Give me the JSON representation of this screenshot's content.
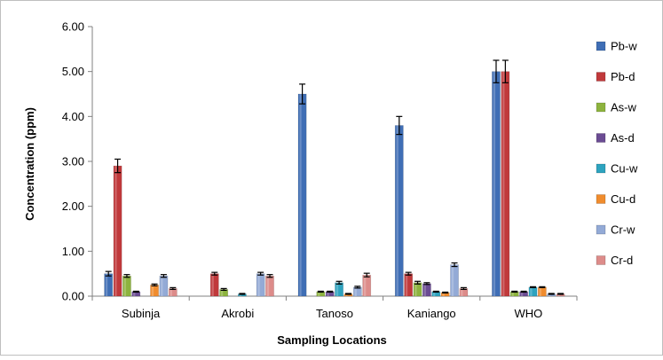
{
  "chart_data": {
    "type": "bar",
    "title": "",
    "xlabel": "Sampling Locations",
    "ylabel": "Concentration (ppm)",
    "ylim": [
      0,
      6
    ],
    "yticks": [
      "0.00",
      "1.00",
      "2.00",
      "3.00",
      "4.00",
      "5.00",
      "6.00"
    ],
    "grid": false,
    "legend": "right",
    "categories": [
      "Subinja",
      "Akrobi",
      "Tanoso",
      "Kaniango",
      "WHO"
    ],
    "series": [
      {
        "name": "Pb-w",
        "color": "#3f6eb5",
        "values": [
          0.5,
          0.0,
          4.5,
          3.8,
          5.0
        ],
        "errors": [
          0.05,
          0,
          0.22,
          0.2,
          0.25
        ]
      },
      {
        "name": "Pb-d",
        "color": "#c0393b",
        "values": [
          2.9,
          0.5,
          0.0,
          0.5,
          5.0
        ],
        "errors": [
          0.15,
          0.03,
          0,
          0.03,
          0.25
        ]
      },
      {
        "name": "As-w",
        "color": "#8db33e",
        "values": [
          0.45,
          0.15,
          0.1,
          0.3,
          0.1
        ],
        "errors": [
          0.03,
          0.02,
          0.01,
          0.03,
          0.01
        ]
      },
      {
        "name": "As-d",
        "color": "#6b4c93",
        "values": [
          0.1,
          0.0,
          0.1,
          0.28,
          0.1
        ],
        "errors": [
          0.01,
          0,
          0.01,
          0.02,
          0.01
        ]
      },
      {
        "name": "Cu-w",
        "color": "#2ea3bf",
        "values": [
          0.0,
          0.05,
          0.3,
          0.1,
          0.2
        ],
        "errors": [
          0,
          0.01,
          0.03,
          0.01,
          0.01
        ]
      },
      {
        "name": "Cu-d",
        "color": "#f08c2e",
        "values": [
          0.25,
          0.0,
          0.05,
          0.08,
          0.2
        ],
        "errors": [
          0.02,
          0,
          0.01,
          0.01,
          0.01
        ]
      },
      {
        "name": "Cr-w",
        "color": "#93aad6",
        "values": [
          0.45,
          0.5,
          0.2,
          0.7,
          0.05
        ],
        "errors": [
          0.03,
          0.03,
          0.02,
          0.04,
          0.01
        ]
      },
      {
        "name": "Cr-d",
        "color": "#dd8c8a",
        "values": [
          0.17,
          0.45,
          0.47,
          0.17,
          0.05
        ],
        "errors": [
          0.02,
          0.03,
          0.04,
          0.02,
          0.01
        ]
      }
    ]
  }
}
